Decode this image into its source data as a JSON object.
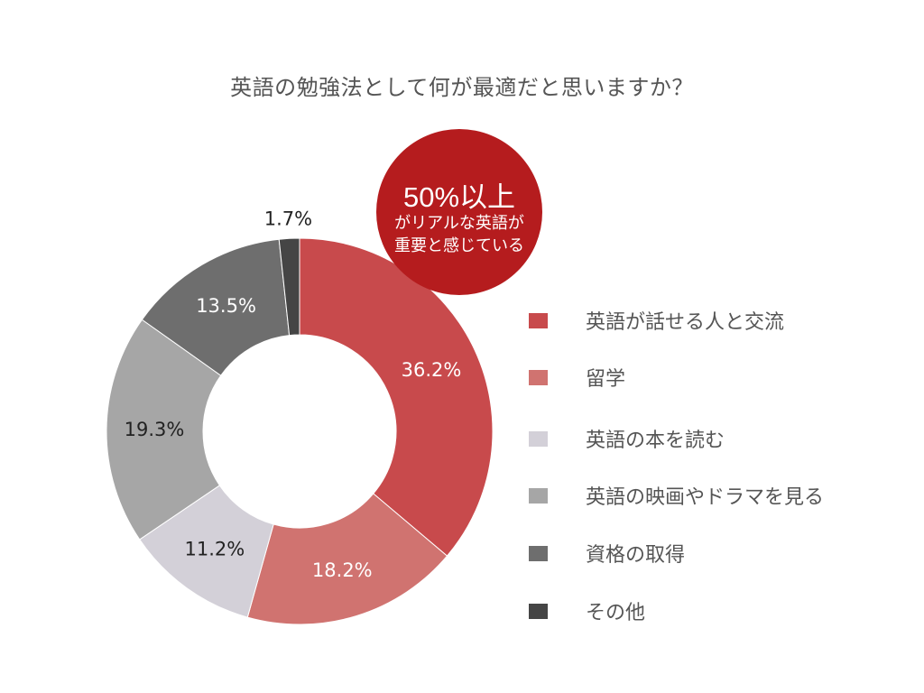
{
  "chart_data": {
    "type": "donut",
    "title": "英語の勉強法として何が最適だと思いますか？",
    "categories": [
      "英語が話せる人と交流",
      "留学",
      "英語の本を読む",
      "英語の映画やドラマを見る",
      "資格の取得",
      "その他"
    ],
    "values": [
      36.2,
      18.2,
      11.2,
      19.3,
      13.5,
      1.7
    ],
    "value_labels": [
      "36.2%",
      "18.2%",
      "11.2%",
      "19.3%",
      "13.5%",
      "1.7%"
    ],
    "colors": [
      "#c84a4c",
      "#d07370",
      "#d3d0d8",
      "#a6a6a6",
      "#6e6e6e",
      "#454545"
    ],
    "label_colors": [
      "#ffffff",
      "#ffffff",
      "#222222",
      "#222222",
      "#ffffff",
      "#222222"
    ],
    "legend_position": "right"
  },
  "callout": {
    "big": "50%以上",
    "line1": "がリアルな英語が",
    "line2": "重要と感じている",
    "color": "#b51c1e"
  }
}
